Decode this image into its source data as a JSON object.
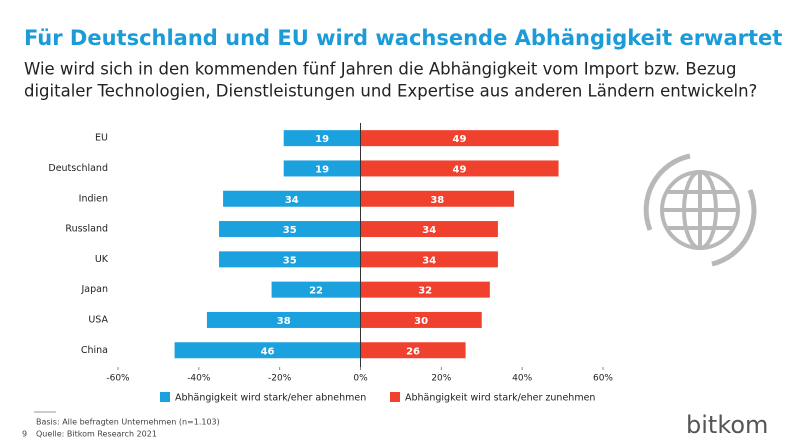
{
  "chart_data": {
    "type": "diverging-bar",
    "title": "Für Deutschland und EU wird wachsende Abhängigkeit erwartet",
    "subtitle": [
      "Wie wird sich in den kommenden fünf Jahren die Abhängigkeit vom Import bzw. Bezug",
      "digitaler Technologien, Dienstleistungen und Expertise aus anderen Ländern entwickeln?"
    ],
    "categories": [
      "EU",
      "Deutschland",
      "Indien",
      "Russland",
      "UK",
      "Japan",
      "USA",
      "China"
    ],
    "series": [
      {
        "name": "Abhängigkeit wird stark/eher abnehmen",
        "color": "#1ba1dd",
        "values": [
          -19,
          -19,
          -34,
          -35,
          -35,
          -22,
          -38,
          -46
        ],
        "value_labels": [
          "19",
          "19",
          "34",
          "35",
          "35",
          "22",
          "38",
          "46"
        ]
      },
      {
        "name": "Abhängigkeit wird stark/eher zunehmen",
        "color": "#f0412f",
        "values": [
          49,
          49,
          38,
          34,
          34,
          32,
          30,
          26
        ]
      }
    ],
    "xlim": [
      -60,
      60
    ],
    "xticks": [
      {
        "value": -60,
        "label": "-60%"
      },
      {
        "value": -40,
        "label": "-40%"
      },
      {
        "value": -20,
        "label": "-20%"
      },
      {
        "value": 0,
        "label": "0%"
      },
      {
        "value": 20,
        "label": "20%"
      },
      {
        "value": 40,
        "label": "40%"
      },
      {
        "value": 60,
        "label": "60%"
      }
    ],
    "legend": "bottom",
    "basis": "Basis: Alle befragten Unternehmen (n=1.103)",
    "page_number": "9",
    "source": "Quelle: Bitkom Research 2021",
    "logo": "bitkom"
  }
}
